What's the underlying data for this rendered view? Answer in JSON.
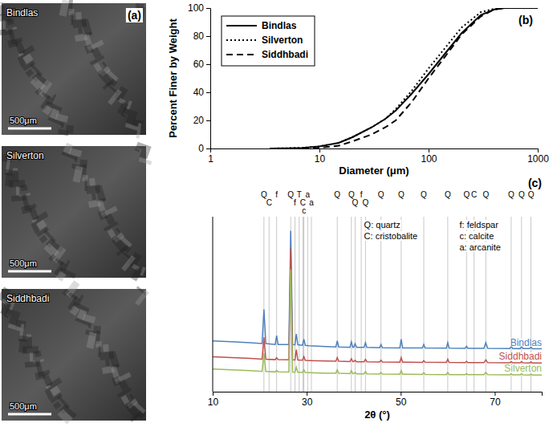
{
  "micrographs": {
    "letter": "(a)",
    "panels": [
      {
        "label": "Bindlas",
        "scale_bar": "500μm"
      },
      {
        "label": "Silverton",
        "scale_bar": "500μm"
      },
      {
        "label": "Siddhbadi",
        "scale_bar": "500μm"
      }
    ]
  },
  "chart_data": [
    {
      "type": "line",
      "title": "(b)",
      "x_label": "Diameter (μm)",
      "y_label": "Percent Finer by Weight",
      "log": "x",
      "xlim": [
        1,
        1000
      ],
      "xticks": [
        1,
        10,
        100,
        1000
      ],
      "ylim": [
        0,
        100
      ],
      "yticks": [
        0,
        20,
        40,
        60,
        80,
        100
      ],
      "grid": false,
      "legend": "upper left",
      "x": [
        3.5,
        5,
        7,
        10,
        15,
        20,
        30,
        40,
        50,
        70,
        100,
        150,
        200,
        300,
        400,
        500,
        700,
        1000
      ],
      "series": [
        {
          "name": "Bindlas",
          "color": "#000000",
          "line_style": "solid",
          "values": [
            0,
            0.2,
            0.5,
            1.5,
            4,
            8,
            15,
            21,
            27,
            39,
            53,
            70,
            82,
            95,
            99,
            100,
            100,
            100
          ]
        },
        {
          "name": "Silverton",
          "color": "#000000",
          "line_style": "dotted",
          "values": [
            0,
            0.2,
            0.5,
            1.5,
            4,
            8,
            15,
            21,
            28,
            41,
            57,
            74,
            86,
            97,
            99.5,
            100,
            100,
            100
          ]
        },
        {
          "name": "Siddhbadi",
          "color": "#000000",
          "line_style": "dashed",
          "values": [
            null,
            null,
            0,
            0.5,
            2,
            5,
            10,
            15,
            20,
            33,
            50,
            68,
            81,
            94,
            99,
            100,
            100,
            100
          ]
        }
      ]
    },
    {
      "type": "line",
      "title": "(c)",
      "x_label": "2θ (°)",
      "xlim": [
        10,
        80
      ],
      "xticks": [
        10,
        30,
        50,
        70
      ],
      "ylim": [
        0,
        100
      ],
      "tick_labels": "x",
      "grid": false,
      "x": [
        10,
        14,
        18,
        20.5,
        20.9,
        21.3,
        23.3,
        23.6,
        23.9,
        26.2,
        26.6,
        27.0,
        27.5,
        27.8,
        28.1,
        29.1,
        29.4,
        29.7,
        30.5,
        34,
        36.2,
        36.5,
        36.8,
        39.2,
        39.5,
        39.8,
        40.0,
        40.3,
        40.6,
        42.2,
        42.5,
        42.8,
        45.5,
        45.8,
        46.1,
        49.8,
        50.1,
        50.4,
        54.6,
        54.9,
        55.2,
        59.7,
        60.0,
        60.3,
        63.7,
        64.0,
        64.3,
        67.7,
        68.1,
        68.5,
        73.2,
        73.5,
        73.8,
        75.4,
        75.7,
        76.0,
        77.4,
        77.7,
        78.0,
        80
      ],
      "series": [
        {
          "name": "Bindlas",
          "color": "#4f81bd",
          "line_style": "solid",
          "values": [
            29,
            28.5,
            28,
            27.5,
            47,
            27.5,
            27,
            32,
            27,
            27,
            92,
            27,
            26.8,
            33,
            26.8,
            26.5,
            30,
            26.5,
            26.3,
            25.8,
            25.6,
            29,
            25.6,
            25.4,
            28.5,
            25.4,
            25.4,
            27.5,
            25.3,
            25.3,
            28,
            25.3,
            25.1,
            27,
            25.1,
            25,
            30,
            25,
            25,
            27,
            25,
            24.9,
            28,
            24.9,
            24.8,
            26,
            24.8,
            24.8,
            28,
            24.8,
            24.7,
            26,
            24.7,
            24.6,
            26,
            24.6,
            24.6,
            25.5,
            24.5,
            24.5
          ]
        },
        {
          "name": "Siddhbadi",
          "color": "#c0504d",
          "line_style": "solid",
          "values": [
            20,
            19.5,
            19,
            18.6,
            31,
            18.6,
            18.3,
            19.5,
            18.3,
            18.2,
            82,
            18.2,
            18.1,
            24,
            18.1,
            18,
            20,
            17.9,
            17.8,
            17.5,
            17.4,
            19.5,
            17.4,
            17.2,
            18.8,
            17.2,
            17.2,
            18,
            17.1,
            17.1,
            18.5,
            17.1,
            17,
            18,
            17,
            16.9,
            19.5,
            16.9,
            16.8,
            17.8,
            16.8,
            16.7,
            18.5,
            16.7,
            16.6,
            17.3,
            16.6,
            16.6,
            18.2,
            16.6,
            16.5,
            17.2,
            16.5,
            16.5,
            17.2,
            16.5,
            16.4,
            17,
            16.4,
            16.4
          ]
        },
        {
          "name": "Silverton",
          "color": "#9bbb59",
          "line_style": "solid",
          "values": [
            13,
            12.5,
            12,
            11.6,
            22,
            11.6,
            11.3,
            12.2,
            11.3,
            11.2,
            70,
            11.2,
            11.1,
            14,
            11.1,
            11,
            12.5,
            11,
            10.9,
            10.6,
            10.5,
            12.5,
            10.5,
            10.3,
            12,
            10.3,
            10.3,
            11,
            10.2,
            10.2,
            11.5,
            10.2,
            10.1,
            11,
            10.1,
            10,
            12,
            10,
            9.9,
            10.8,
            9.9,
            9.8,
            11,
            9.8,
            9.7,
            10.3,
            9.7,
            9.7,
            11,
            9.7,
            9.6,
            10.2,
            9.6,
            9.6,
            10.2,
            9.6,
            9.5,
            10,
            9.5,
            9.5
          ]
        }
      ],
      "key_labels": [
        "Q: quartz",
        "C: cristobalite",
        "f: feldspar",
        "c: calcite",
        "a: arcanite"
      ],
      "annotations": [
        {
          "x": 20.9,
          "text": "Q"
        },
        {
          "x": 22.0,
          "text": "C"
        },
        {
          "x": 23.6,
          "text": "f"
        },
        {
          "x": 26.6,
          "text": "Q"
        },
        {
          "x": 27.5,
          "text": "f"
        },
        {
          "x": 28.4,
          "text": "T"
        },
        {
          "x": 29.2,
          "text": "C"
        },
        {
          "x": 29.4,
          "text": "c"
        },
        {
          "x": 30.2,
          "text": "a"
        },
        {
          "x": 31.0,
          "text": "a"
        },
        {
          "x": 36.5,
          "text": "Q"
        },
        {
          "x": 39.5,
          "text": "Q"
        },
        {
          "x": 40.3,
          "text": "Q"
        },
        {
          "x": 41.6,
          "text": "f"
        },
        {
          "x": 42.5,
          "text": "Q"
        },
        {
          "x": 45.8,
          "text": "Q"
        },
        {
          "x": 50.1,
          "text": "Q"
        },
        {
          "x": 54.9,
          "text": "Q"
        },
        {
          "x": 60.0,
          "text": "Q"
        },
        {
          "x": 64.0,
          "text": "Q"
        },
        {
          "x": 65.6,
          "text": "C"
        },
        {
          "x": 68.1,
          "text": "Q"
        },
        {
          "x": 73.5,
          "text": "Q"
        },
        {
          "x": 75.7,
          "text": "Q"
        },
        {
          "x": 77.7,
          "text": "Q"
        }
      ]
    }
  ]
}
